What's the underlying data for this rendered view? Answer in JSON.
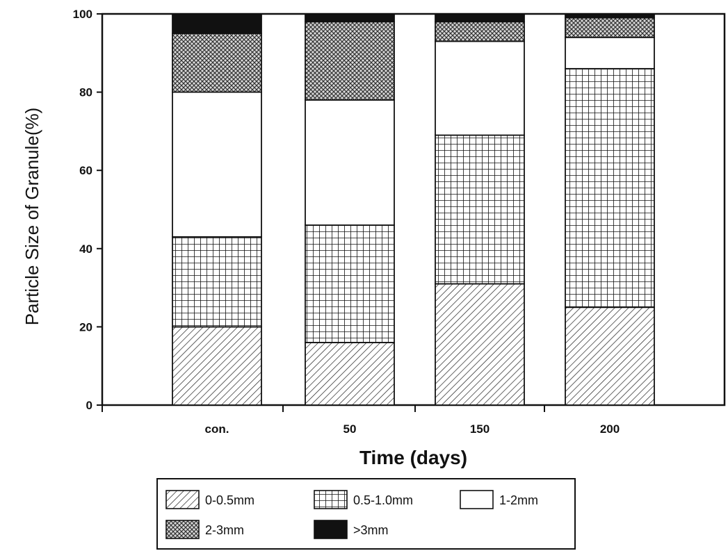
{
  "chart_data": {
    "type": "bar",
    "stacked": true,
    "categories": [
      "con.",
      "50",
      "150",
      "200"
    ],
    "series": [
      {
        "name": "0-0.5mm",
        "values": [
          20,
          16,
          31,
          25
        ],
        "pattern": "diagonal-hatch"
      },
      {
        "name": "0.5-1.0mm",
        "values": [
          23,
          30,
          38,
          61
        ],
        "pattern": "grid"
      },
      {
        "name": "1-2mm",
        "values": [
          37,
          32,
          24,
          8
        ],
        "pattern": "blank"
      },
      {
        "name": "2-3mm",
        "values": [
          15,
          20,
          5,
          5
        ],
        "pattern": "crosshatch"
      },
      {
        "name": ">3mm",
        "values": [
          5,
          2,
          2,
          1
        ],
        "pattern": "solid"
      }
    ],
    "xlabel": "Time (days)",
    "ylabel": "Particle Size of Granule(%)",
    "ylim": [
      0,
      100
    ],
    "yticks": [
      0,
      20,
      40,
      60,
      80,
      100
    ],
    "legend_position": "bottom",
    "grid": false
  }
}
